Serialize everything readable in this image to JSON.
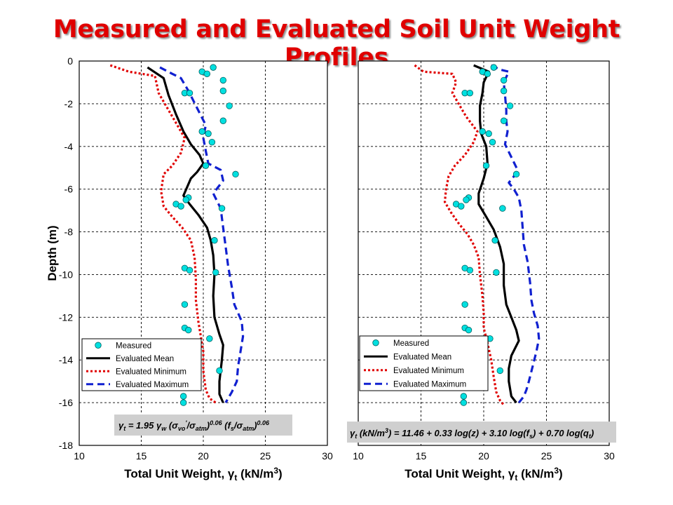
{
  "title": "Measured and Evaluated Soil Unit Weight Profiles",
  "colors": {
    "title": "#e00000",
    "measured": "#00e0e0",
    "mean": "#000000",
    "minimum": "#e00000",
    "maximum": "#1020d0"
  },
  "chart_data": [
    {
      "type": "line",
      "xlabel": "Total Unit Weight, γt (kN/m3)",
      "xlabel_parts": [
        "Total Unit Weight, ",
        "γ",
        "t",
        " (kN/m",
        "3",
        ")"
      ],
      "ylabel": "Depth (m)",
      "xlim": [
        10,
        30
      ],
      "ylim": [
        -18,
        0
      ],
      "xticks": [
        10,
        15,
        20,
        25,
        30
      ],
      "yticks": [
        0,
        -2,
        -4,
        -6,
        -8,
        -10,
        -12,
        -14,
        -16,
        -18
      ],
      "grid": true,
      "legend": {
        "placement": "bottom-left",
        "entries": [
          "Measured",
          "Evaluated Mean",
          "Evaluated Minimum",
          "Evaluated Maximum"
        ]
      },
      "equation": {
        "text": "γt = 1.95 γw (σvo'/σatm)0.06 (fs/σatm)0.06",
        "parts": [
          {
            "t": "γ",
            "s": "n"
          },
          {
            "t": "t",
            "s": "sub"
          },
          {
            "t": " = 1.95 ",
            "s": "n"
          },
          {
            "t": "γ",
            "s": "n"
          },
          {
            "t": "w",
            "s": "sub"
          },
          {
            "t": " (",
            "s": "n"
          },
          {
            "t": "σ",
            "s": "n"
          },
          {
            "t": "vo",
            "s": "sub"
          },
          {
            "t": "'",
            "s": "sup"
          },
          {
            "t": "/",
            "s": "n"
          },
          {
            "t": "σ",
            "s": "n"
          },
          {
            "t": "atm",
            "s": "sub"
          },
          {
            "t": ")",
            "s": "n"
          },
          {
            "t": "0.06",
            "s": "sup"
          },
          {
            "t": " (f",
            "s": "n"
          },
          {
            "t": "s",
            "s": "sub"
          },
          {
            "t": "/",
            "s": "n"
          },
          {
            "t": "σ",
            "s": "n"
          },
          {
            "t": "atm",
            "s": "sub"
          },
          {
            "t": ")",
            "s": "n"
          },
          {
            "t": "0.06",
            "s": "sup"
          }
        ]
      },
      "measured": {
        "name": "Measured",
        "x": [
          20.8,
          19.9,
          20.3,
          21.6,
          21.6,
          18.5,
          18.9,
          22.1,
          21.6,
          19.9,
          20.4,
          20.7,
          20.2,
          22.6,
          18.8,
          18.6,
          17.8,
          18.2,
          21.5,
          20.9,
          18.5,
          18.9,
          21.0,
          18.5,
          18.5,
          18.8,
          20.5,
          21.3,
          18.4,
          18.4
        ],
        "y": [
          -0.3,
          -0.5,
          -0.6,
          -0.9,
          -1.4,
          -1.5,
          -1.5,
          -2.1,
          -2.8,
          -3.3,
          -3.4,
          -3.8,
          -4.9,
          -5.3,
          -6.4,
          -6.5,
          -6.7,
          -6.8,
          -6.9,
          -8.4,
          -9.7,
          -9.8,
          -9.9,
          -11.4,
          -12.5,
          -12.6,
          -13.0,
          -14.5,
          -15.7,
          -16.0
        ]
      },
      "series": [
        {
          "name": "Evaluated Mean",
          "style": "solid",
          "points": [
            [
              15.5,
              -0.3
            ],
            [
              16.8,
              -0.8
            ],
            [
              17.2,
              -1.6
            ],
            [
              17.8,
              -2.5
            ],
            [
              18.4,
              -3.3
            ],
            [
              19.0,
              -3.9
            ],
            [
              19.7,
              -4.4
            ],
            [
              20.0,
              -4.8
            ],
            [
              19.5,
              -5.2
            ],
            [
              19.0,
              -5.5
            ],
            [
              18.7,
              -5.9
            ],
            [
              18.4,
              -6.3
            ],
            [
              18.9,
              -6.7
            ],
            [
              19.6,
              -7.2
            ],
            [
              20.3,
              -7.8
            ],
            [
              20.6,
              -8.4
            ],
            [
              20.8,
              -9.1
            ],
            [
              20.9,
              -10.0
            ],
            [
              20.8,
              -11.0
            ],
            [
              20.9,
              -12.0
            ],
            [
              21.3,
              -12.8
            ],
            [
              21.6,
              -13.3
            ],
            [
              21.5,
              -14.0
            ],
            [
              21.3,
              -15.0
            ],
            [
              21.3,
              -15.6
            ],
            [
              21.6,
              -16.0
            ]
          ]
        },
        {
          "name": "Evaluated Minimum",
          "style": "dotted",
          "points": [
            [
              12.5,
              -0.2
            ],
            [
              14.0,
              -0.5
            ],
            [
              16.1,
              -0.7
            ],
            [
              16.4,
              -1.5
            ],
            [
              17.2,
              -2.3
            ],
            [
              17.8,
              -2.9
            ],
            [
              18.5,
              -3.6
            ],
            [
              18.2,
              -4.3
            ],
            [
              17.5,
              -4.9
            ],
            [
              16.8,
              -5.3
            ],
            [
              16.6,
              -6.1
            ],
            [
              16.8,
              -6.8
            ],
            [
              17.5,
              -7.3
            ],
            [
              18.3,
              -7.8
            ],
            [
              19.0,
              -8.4
            ],
            [
              19.3,
              -9.2
            ],
            [
              19.4,
              -10.2
            ],
            [
              19.4,
              -11.2
            ],
            [
              19.6,
              -12.2
            ],
            [
              19.8,
              -12.9
            ],
            [
              20.0,
              -13.6
            ],
            [
              20.0,
              -14.5
            ],
            [
              20.2,
              -15.4
            ],
            [
              20.5,
              -15.8
            ],
            [
              21.0,
              -16.0
            ]
          ]
        },
        {
          "name": "Evaluated Maximum",
          "style": "dashed",
          "points": [
            [
              16.5,
              -0.3
            ],
            [
              17.5,
              -0.6
            ],
            [
              18.2,
              -0.8
            ],
            [
              18.8,
              -1.4
            ],
            [
              19.5,
              -2.2
            ],
            [
              20.2,
              -3.0
            ],
            [
              20.0,
              -3.6
            ],
            [
              20.2,
              -4.2
            ],
            [
              20.4,
              -4.8
            ],
            [
              21.4,
              -5.1
            ],
            [
              21.6,
              -5.6
            ],
            [
              20.8,
              -6.2
            ],
            [
              21.4,
              -6.9
            ],
            [
              21.6,
              -7.8
            ],
            [
              21.8,
              -8.7
            ],
            [
              22.0,
              -9.6
            ],
            [
              22.3,
              -10.6
            ],
            [
              22.5,
              -11.4
            ],
            [
              23.1,
              -12.2
            ],
            [
              23.2,
              -12.9
            ],
            [
              23.0,
              -13.6
            ],
            [
              22.8,
              -14.3
            ],
            [
              22.7,
              -15.0
            ],
            [
              22.3,
              -15.5
            ],
            [
              22.0,
              -15.8
            ],
            [
              21.8,
              -16.0
            ]
          ]
        }
      ]
    },
    {
      "type": "line",
      "xlabel": "Total Unit Weight, γt (kN/m3)",
      "xlabel_parts": [
        "Total Unit Weight, ",
        "γ",
        "t",
        " (kN/m",
        "3",
        ")"
      ],
      "ylabel": "",
      "xlim": [
        10,
        30
      ],
      "ylim": [
        -18,
        0
      ],
      "xticks": [
        10,
        15,
        20,
        25,
        30
      ],
      "yticks": [],
      "grid": true,
      "legend": {
        "placement": "bottom-left",
        "entries": [
          "Measured",
          "Evaluated Mean",
          "Evaluated Minimum",
          "Evaluated Maximum"
        ]
      },
      "equation": {
        "text": "γt (kN/m3) = 11.46 + 0.33 log(z) + 3.10 log(fs) + 0.70 log(qt)",
        "parts": [
          {
            "t": "γ",
            "s": "n"
          },
          {
            "t": "t",
            "s": "sub"
          },
          {
            "t": " (kN/m",
            "s": "n"
          },
          {
            "t": "3",
            "s": "sup"
          },
          {
            "t": ") = 11.46 + 0.33 log(z) + 3.10 log(f",
            "s": "n"
          },
          {
            "t": "s",
            "s": "sub"
          },
          {
            "t": ") + 0.70 log(q",
            "s": "n"
          },
          {
            "t": "t",
            "s": "sub"
          },
          {
            "t": ")",
            "s": "n"
          }
        ]
      },
      "measured": {
        "name": "Measured",
        "x": [
          20.8,
          19.9,
          20.3,
          21.6,
          21.6,
          18.5,
          18.9,
          22.1,
          21.6,
          19.9,
          20.4,
          20.7,
          20.2,
          22.6,
          18.8,
          18.6,
          17.8,
          18.2,
          21.5,
          20.9,
          18.5,
          18.9,
          21.0,
          18.5,
          18.5,
          18.8,
          20.5,
          21.3,
          18.4,
          18.4
        ],
        "y": [
          -0.3,
          -0.5,
          -0.6,
          -0.9,
          -1.4,
          -1.5,
          -1.5,
          -2.1,
          -2.8,
          -3.3,
          -3.4,
          -3.8,
          -4.9,
          -5.3,
          -6.4,
          -6.5,
          -6.7,
          -6.8,
          -6.9,
          -8.4,
          -9.7,
          -9.8,
          -9.9,
          -11.4,
          -12.5,
          -12.6,
          -13.0,
          -14.5,
          -15.7,
          -16.0
        ]
      },
      "series": [
        {
          "name": "Evaluated Mean",
          "style": "solid",
          "points": [
            [
              19.2,
              -0.2
            ],
            [
              20.4,
              -0.5
            ],
            [
              20.0,
              -1.0
            ],
            [
              19.9,
              -1.5
            ],
            [
              19.7,
              -2.1
            ],
            [
              19.7,
              -2.8
            ],
            [
              19.8,
              -3.4
            ],
            [
              20.2,
              -4.0
            ],
            [
              20.3,
              -4.8
            ],
            [
              20.0,
              -5.5
            ],
            [
              19.6,
              -6.2
            ],
            [
              19.6,
              -6.7
            ],
            [
              20.2,
              -7.3
            ],
            [
              20.8,
              -7.9
            ],
            [
              21.3,
              -8.7
            ],
            [
              21.6,
              -9.5
            ],
            [
              21.6,
              -10.5
            ],
            [
              21.8,
              -11.4
            ],
            [
              22.2,
              -12.0
            ],
            [
              22.6,
              -12.6
            ],
            [
              22.8,
              -13.1
            ],
            [
              22.2,
              -13.8
            ],
            [
              22.0,
              -14.4
            ],
            [
              22.0,
              -15.0
            ],
            [
              22.2,
              -15.7
            ],
            [
              22.6,
              -16.0
            ]
          ]
        },
        {
          "name": "Evaluated Minimum",
          "style": "dotted",
          "points": [
            [
              14.5,
              -0.2
            ],
            [
              15.2,
              -0.5
            ],
            [
              17.5,
              -0.6
            ],
            [
              17.8,
              -1.0
            ],
            [
              17.5,
              -1.5
            ],
            [
              18.0,
              -2.0
            ],
            [
              18.6,
              -2.6
            ],
            [
              19.5,
              -3.3
            ],
            [
              19.2,
              -3.8
            ],
            [
              18.5,
              -4.4
            ],
            [
              17.7,
              -4.9
            ],
            [
              17.2,
              -5.4
            ],
            [
              17.0,
              -6.0
            ],
            [
              16.9,
              -6.6
            ],
            [
              17.4,
              -7.1
            ],
            [
              18.0,
              -7.6
            ],
            [
              18.7,
              -8.1
            ],
            [
              19.2,
              -8.6
            ],
            [
              19.6,
              -9.2
            ],
            [
              19.7,
              -10.0
            ],
            [
              19.9,
              -11.0
            ],
            [
              20.0,
              -11.8
            ],
            [
              20.0,
              -12.5
            ],
            [
              20.3,
              -13.2
            ],
            [
              20.6,
              -14.0
            ],
            [
              20.8,
              -14.8
            ],
            [
              21.0,
              -15.5
            ],
            [
              21.3,
              -15.9
            ],
            [
              21.6,
              -16.1
            ]
          ]
        },
        {
          "name": "Evaluated Maximum",
          "style": "dashed",
          "points": [
            [
              20.6,
              -0.2
            ],
            [
              21.3,
              -0.4
            ],
            [
              22.0,
              -0.5
            ],
            [
              21.6,
              -1.0
            ],
            [
              21.7,
              -1.6
            ],
            [
              21.8,
              -2.3
            ],
            [
              21.8,
              -2.8
            ],
            [
              21.9,
              -3.3
            ],
            [
              21.7,
              -3.9
            ],
            [
              22.2,
              -4.5
            ],
            [
              22.7,
              -5.1
            ],
            [
              22.4,
              -5.4
            ],
            [
              22.0,
              -5.7
            ],
            [
              22.4,
              -6.0
            ],
            [
              22.8,
              -6.4
            ],
            [
              23.0,
              -7.0
            ],
            [
              23.1,
              -7.8
            ],
            [
              23.2,
              -8.6
            ],
            [
              23.5,
              -9.4
            ],
            [
              23.7,
              -10.4
            ],
            [
              23.8,
              -11.2
            ],
            [
              24.0,
              -11.8
            ],
            [
              24.3,
              -12.4
            ],
            [
              24.4,
              -13.0
            ],
            [
              24.2,
              -13.6
            ],
            [
              23.9,
              -14.3
            ],
            [
              23.6,
              -15.0
            ],
            [
              23.4,
              -15.4
            ],
            [
              23.2,
              -15.7
            ],
            [
              22.8,
              -16.0
            ]
          ]
        }
      ]
    }
  ]
}
